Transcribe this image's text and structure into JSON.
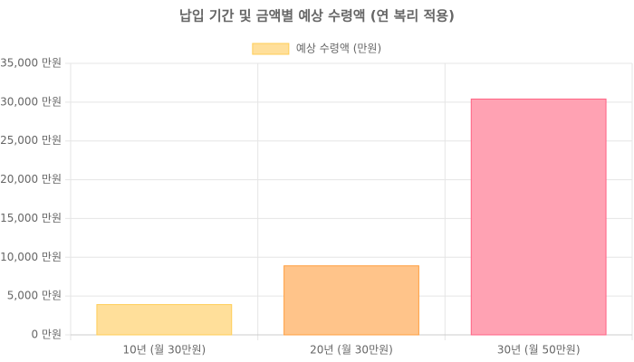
{
  "chart_data": {
    "type": "bar",
    "title": "납입 기간 및 금액별 예상 수령액 (연 복리 적용)",
    "categories": [
      "10년 (월 30만원)",
      "20년 (월 30만원)",
      "30년 (월 50만원)"
    ],
    "series": [
      {
        "name": "예상 수령액 (만원)",
        "colors": [
          "#ffdf9a",
          "#ffc48a",
          "#ffa2b3"
        ],
        "border_colors": [
          "#ffcd56",
          "#ff9f40",
          "#ff6384"
        ],
        "values": [
          3900,
          8900,
          30400
        ]
      }
    ],
    "ylim": [
      0,
      35000
    ],
    "yticks": [
      {
        "value": 0,
        "label": "0 만원"
      },
      {
        "value": 5000,
        "label": "5,000 만원"
      },
      {
        "value": 10000,
        "label": "10,000 만원"
      },
      {
        "value": 15000,
        "label": "15,000 만원"
      },
      {
        "value": 20000,
        "label": "20,000 만원"
      },
      {
        "value": 25000,
        "label": "25,000 만원"
      },
      {
        "value": 30000,
        "label": "30,000 만원"
      },
      {
        "value": 35000,
        "label": "35,000 만원"
      }
    ],
    "grid": true,
    "legend": "top"
  }
}
